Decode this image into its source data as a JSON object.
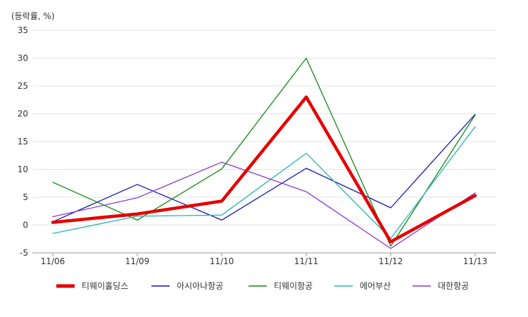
{
  "chart_data": {
    "type": "line",
    "unit_label": "(등락률, %)",
    "categories": [
      "11/06",
      "11/09",
      "11/10",
      "11/11",
      "11/12",
      "11/13"
    ],
    "ylim": [
      -5,
      35
    ],
    "yticks": [
      -5,
      0,
      5,
      10,
      15,
      20,
      25,
      30,
      35
    ],
    "grid": true,
    "legend_position": "bottom",
    "series": [
      {
        "name": "티웨이홀딩스",
        "color": "#e60000",
        "width": 4.5,
        "values": [
          0.5,
          2.0,
          4.3,
          23.0,
          -3.0,
          5.3
        ]
      },
      {
        "name": "아시아나항공",
        "color": "#1515b8",
        "width": 1.3,
        "values": [
          0.6,
          7.3,
          0.9,
          10.2,
          3.1,
          19.9
        ]
      },
      {
        "name": "티웨이항공",
        "color": "#118811",
        "width": 1.3,
        "values": [
          7.7,
          0.9,
          10.1,
          30.0,
          -3.8,
          19.8
        ]
      },
      {
        "name": "에어부산",
        "color": "#26b5b5",
        "width": 1.3,
        "values": [
          -1.5,
          1.6,
          1.8,
          12.9,
          -2.4,
          17.7
        ]
      },
      {
        "name": "대한항공",
        "color": "#8a3ad1",
        "width": 1.3,
        "values": [
          1.5,
          4.9,
          11.3,
          6.0,
          -4.2,
          5.8
        ]
      }
    ]
  }
}
